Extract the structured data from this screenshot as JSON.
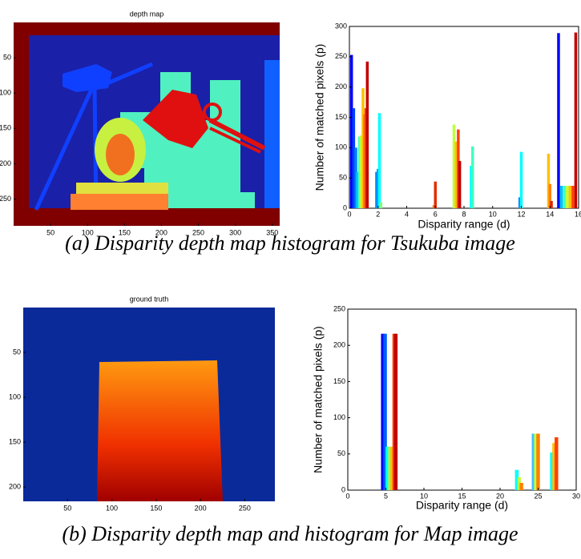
{
  "images": [
    {
      "title": "depth map",
      "xlim": [
        0,
        360
      ],
      "ylim": [
        0,
        288
      ],
      "xticks": [
        50,
        100,
        150,
        200,
        250,
        300,
        350
      ],
      "yticks": [
        50,
        100,
        150,
        200,
        250
      ]
    },
    {
      "title": "ground truth",
      "xlim": [
        0,
        284
      ],
      "ylim": [
        0,
        216
      ],
      "xticks": [
        50,
        100,
        150,
        200,
        250
      ],
      "yticks": [
        50,
        100,
        150,
        200
      ]
    }
  ],
  "chart_data": [
    {
      "type": "bar",
      "xlabel": "Disparity range (d)",
      "ylabel": "Number of matched pixels (p)",
      "xlim": [
        0,
        16
      ],
      "ylim": [
        0,
        300
      ],
      "xticks": [
        0,
        2,
        4,
        6,
        8,
        10,
        12,
        14,
        16
      ],
      "yticks": [
        0,
        50,
        100,
        150,
        200,
        250,
        300
      ],
      "x": [
        0.15,
        0.3,
        0.45,
        0.55,
        0.7,
        0.8,
        0.95,
        1.05,
        1.15,
        1.25,
        1.9,
        2.0,
        2.1,
        2.2,
        5.9,
        6.0,
        7.3,
        7.45,
        7.6,
        7.7,
        8.5,
        8.6,
        11.9,
        12.0,
        13.9,
        14.0,
        14.1,
        14.6,
        14.8,
        15.0,
        15.2,
        15.4,
        15.6,
        15.8
      ],
      "values": [
        253,
        165,
        100,
        60,
        118,
        120,
        198,
        155,
        165,
        242,
        60,
        65,
        157,
        10,
        5,
        44,
        138,
        110,
        130,
        78,
        70,
        102,
        18,
        93,
        90,
        40,
        12,
        289,
        37,
        37,
        37,
        37,
        37,
        290
      ],
      "colors": [
        "#0000ff",
        "#0040ff",
        "#0080ff",
        "#00c0ff",
        "#40ffc0",
        "#c0ff40",
        "#ffc000",
        "#ff8000",
        "#ff4000",
        "#c00000",
        "#0080ff",
        "#00a0ff",
        "#00ffff",
        "#80ff80",
        "#ff8000",
        "#e03000",
        "#c0ff40",
        "#ffc000",
        "#ff4000",
        "#c00000",
        "#00ffff",
        "#40ffc0",
        "#0080ff",
        "#00ffff",
        "#ffc000",
        "#ff8000",
        "#e02000",
        "#0000ff",
        "#00c0ff",
        "#40ffc0",
        "#c0ff40",
        "#ffc000",
        "#ff4000",
        "#c00000"
      ]
    },
    {
      "type": "bar",
      "xlabel": "Disparity range (d)",
      "ylabel": "Number of matched pixels (p)",
      "xlim": [
        0,
        30
      ],
      "ylim": [
        0,
        250
      ],
      "xticks": [
        0,
        5,
        10,
        15,
        20,
        25,
        30
      ],
      "yticks": [
        0,
        50,
        100,
        150,
        200,
        250
      ],
      "x": [
        4.6,
        4.9,
        5.2,
        5.5,
        5.8,
        6.1,
        6.3,
        22.2,
        22.5,
        22.8,
        24.4,
        24.7,
        25.0,
        26.8,
        27.1,
        27.4
      ],
      "values": [
        216,
        216,
        60,
        60,
        60,
        216,
        216,
        28,
        18,
        10,
        78,
        78,
        78,
        52,
        65,
        73
      ],
      "colors": [
        "#0000ff",
        "#0060ff",
        "#00ffff",
        "#80ff80",
        "#ffc000",
        "#ff4000",
        "#c00000",
        "#00ffff",
        "#c0ff40",
        "#ff8000",
        "#40c0ff",
        "#c0ff40",
        "#ff8000",
        "#00ffff",
        "#ffc000",
        "#ff4000"
      ]
    }
  ],
  "captions": [
    "(a) Disparity depth map histogram for Tsukuba image",
    "(b) Disparity depth map and histogram for Map image"
  ]
}
